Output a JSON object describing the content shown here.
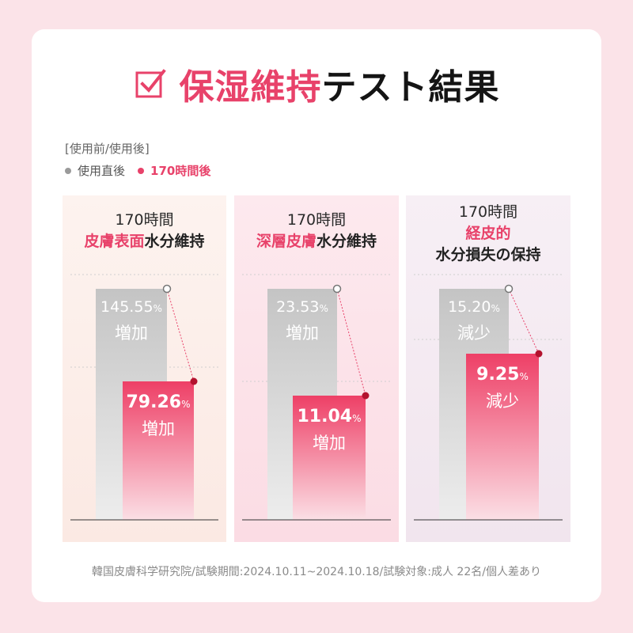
{
  "title": {
    "highlight": "保湿維持",
    "rest": "テスト結果"
  },
  "legend": {
    "title": "[使用前/使用後]",
    "items": [
      {
        "label": "使用直後",
        "color": "#9a9a9a"
      },
      {
        "label": "170時間後",
        "color": "#e8426a"
      }
    ]
  },
  "colors": {
    "accent": "#e8426a",
    "gray_bar": "#c9c9c9",
    "dark_dot": "#b3122e"
  },
  "chart_data": [
    {
      "type": "bar",
      "title_lines": [
        {
          "parts": [
            {
              "text": "170時間",
              "style": "plain"
            }
          ]
        },
        {
          "parts": [
            {
              "text": "皮膚表面",
              "style": "hl"
            },
            {
              "text": "水分維持",
              "style": "dk"
            }
          ]
        }
      ],
      "categories": [
        "使用直後",
        "170時間後"
      ],
      "values": [
        145.55,
        79.26
      ],
      "value_labels": [
        "145.55",
        "79.26"
      ],
      "unit": "%",
      "change_labels": [
        "増加",
        "増加"
      ]
    },
    {
      "type": "bar",
      "title_lines": [
        {
          "parts": [
            {
              "text": "170時間",
              "style": "plain"
            }
          ]
        },
        {
          "parts": [
            {
              "text": "深層皮膚",
              "style": "hl"
            },
            {
              "text": "水分維持",
              "style": "dk"
            }
          ]
        }
      ],
      "categories": [
        "使用直後",
        "170時間後"
      ],
      "values": [
        23.53,
        11.04
      ],
      "value_labels": [
        "23.53",
        "11.04"
      ],
      "unit": "%",
      "change_labels": [
        "増加",
        "増加"
      ]
    },
    {
      "type": "bar",
      "title_lines": [
        {
          "parts": [
            {
              "text": "170時間",
              "style": "plain"
            }
          ]
        },
        {
          "parts": [
            {
              "text": "経皮的",
              "style": "hl"
            }
          ]
        },
        {
          "parts": [
            {
              "text": "水分損失の保持",
              "style": "dk"
            }
          ]
        }
      ],
      "categories": [
        "使用直後",
        "170時間後"
      ],
      "values": [
        15.2,
        9.25
      ],
      "value_labels": [
        "15.20",
        "9.25"
      ],
      "unit": "%",
      "change_labels": [
        "減少",
        "減少"
      ]
    }
  ],
  "footer": "韓国皮膚科学研究院/試験期間:2024.10.11~2024.10.18/試験対象:成人 22名/個人差あり"
}
